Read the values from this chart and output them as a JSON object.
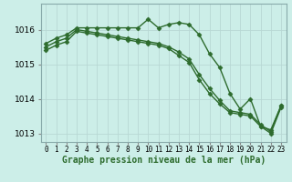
{
  "bg_color": "#cceee8",
  "grid_color_major": "#b8d8d4",
  "grid_color_minor": "#d4ece8",
  "line_color": "#2d6b2d",
  "marker": "D",
  "markersize": 2.5,
  "linewidth": 1.0,
  "hours": [
    0,
    1,
    2,
    3,
    4,
    5,
    6,
    7,
    8,
    9,
    10,
    11,
    12,
    13,
    14,
    15,
    16,
    17,
    18,
    19,
    20,
    21,
    22,
    23
  ],
  "series1": [
    1015.6,
    1015.75,
    1015.85,
    1016.05,
    1016.05,
    1016.05,
    1016.05,
    1016.05,
    1016.05,
    1016.05,
    1016.3,
    1016.05,
    1016.15,
    1016.2,
    1016.15,
    1015.85,
    1015.3,
    1014.9,
    1014.15,
    1013.7,
    1014.0,
    1013.2,
    1013.1,
    1013.8
  ],
  "series2": [
    1015.5,
    1015.65,
    1015.75,
    1016.0,
    1015.95,
    1015.9,
    1015.85,
    1015.8,
    1015.75,
    1015.7,
    1015.65,
    1015.6,
    1015.5,
    1015.35,
    1015.15,
    1014.7,
    1014.3,
    1013.95,
    1013.65,
    1013.6,
    1013.55,
    1013.25,
    1013.05,
    1013.8
  ],
  "series3": [
    1015.4,
    1015.55,
    1015.65,
    1015.95,
    1015.9,
    1015.85,
    1015.8,
    1015.75,
    1015.7,
    1015.65,
    1015.6,
    1015.55,
    1015.45,
    1015.25,
    1015.05,
    1014.55,
    1014.15,
    1013.85,
    1013.6,
    1013.55,
    1013.5,
    1013.2,
    1013.0,
    1013.75
  ],
  "ylim": [
    1012.75,
    1016.75
  ],
  "yticks": [
    1013,
    1014,
    1015,
    1016
  ],
  "xlabel": "Graphe pression niveau de la mer (hPa)",
  "xlabel_fontsize": 7,
  "tick_fontsize": 6.5,
  "xtick_fontsize": 5.5
}
